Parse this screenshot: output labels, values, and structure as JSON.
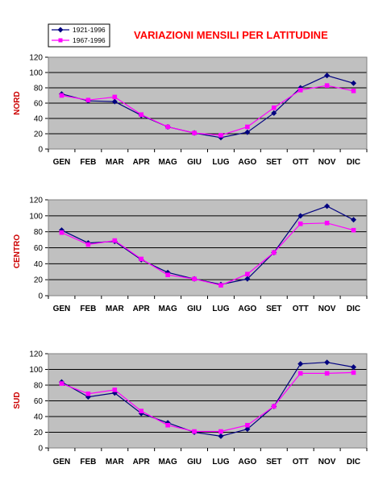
{
  "title": "VARIAZIONI MENSILI PER LATITUDINE",
  "legend": {
    "placement": "top-left",
    "entries": [
      {
        "name": "1921-1996",
        "color": "#000080",
        "marker": "diamond"
      },
      {
        "name": "1967-1996",
        "color": "#FF00FF",
        "marker": "square"
      }
    ]
  },
  "colors": {
    "title": "#FF0000",
    "panel_label": "#CC0000",
    "plot_background": "#C0C0C0",
    "grid": "#000000",
    "series_1921": "#000080",
    "series_1967": "#FF00FF"
  },
  "chart_data": [
    {
      "type": "line",
      "panel_label": "NORD",
      "categories": [
        "GEN",
        "FEB",
        "MAR",
        "APR",
        "MAG",
        "GIU",
        "LUG",
        "AGO",
        "SET",
        "OTT",
        "NOV",
        "DIC"
      ],
      "ylim": [
        0,
        120
      ],
      "yticks": [
        0,
        20,
        40,
        60,
        80,
        100,
        120
      ],
      "grid": true,
      "series": [
        {
          "name": "1921-1996",
          "values": [
            72,
            63,
            62,
            44,
            29,
            21,
            15,
            22,
            47,
            80,
            96,
            86
          ]
        },
        {
          "name": "1967-1996",
          "values": [
            70,
            64,
            68,
            45,
            29,
            21,
            18,
            29,
            54,
            77,
            83,
            76
          ]
        }
      ]
    },
    {
      "type": "line",
      "panel_label": "CENTRO",
      "categories": [
        "GEN",
        "FEB",
        "MAR",
        "APR",
        "MAG",
        "GIU",
        "LUG",
        "AGO",
        "SET",
        "OTT",
        "NOV",
        "DIC"
      ],
      "ylim": [
        0,
        120
      ],
      "yticks": [
        0,
        20,
        40,
        60,
        80,
        100,
        120
      ],
      "grid": true,
      "series": [
        {
          "name": "1921-1996",
          "values": [
            82,
            66,
            68,
            45,
            29,
            21,
            14,
            21,
            54,
            100,
            112,
            95
          ]
        },
        {
          "name": "1967-1996",
          "values": [
            79,
            64,
            69,
            46,
            26,
            21,
            13,
            27,
            54,
            90,
            91,
            82
          ]
        }
      ]
    },
    {
      "type": "line",
      "panel_label": "SUD",
      "categories": [
        "GEN",
        "FEB",
        "MAR",
        "APR",
        "MAG",
        "GIU",
        "LUG",
        "AGO",
        "SET",
        "OTT",
        "NOV",
        "DIC"
      ],
      "ylim": [
        0,
        120
      ],
      "yticks": [
        0,
        20,
        40,
        60,
        80,
        100,
        120
      ],
      "grid": true,
      "series": [
        {
          "name": "1921-1996",
          "values": [
            84,
            65,
            70,
            44,
            32,
            20,
            15,
            24,
            53,
            107,
            109,
            103
          ]
        },
        {
          "name": "1967-1996",
          "values": [
            82,
            69,
            74,
            47,
            29,
            21,
            21,
            29,
            53,
            95,
            95,
            96
          ]
        }
      ]
    }
  ]
}
